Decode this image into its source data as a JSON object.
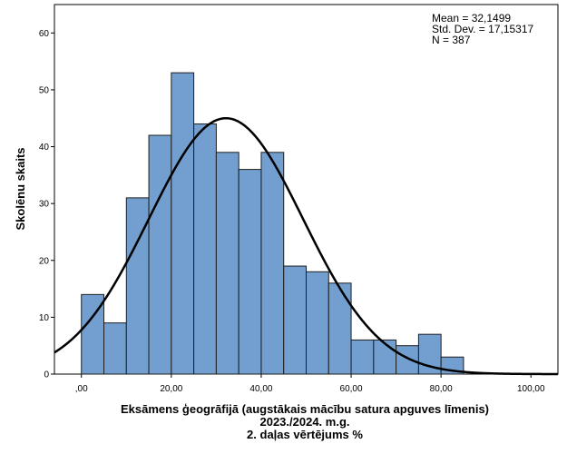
{
  "chart_data": {
    "type": "bar",
    "subtype": "histogram",
    "bin_width": 5,
    "bins": [
      {
        "start": 0,
        "end": 5,
        "count": 14
      },
      {
        "start": 5,
        "end": 10,
        "count": 9
      },
      {
        "start": 10,
        "end": 15,
        "count": 31
      },
      {
        "start": 15,
        "end": 20,
        "count": 42
      },
      {
        "start": 20,
        "end": 25,
        "count": 53
      },
      {
        "start": 25,
        "end": 30,
        "count": 44
      },
      {
        "start": 30,
        "end": 35,
        "count": 39
      },
      {
        "start": 35,
        "end": 40,
        "count": 36
      },
      {
        "start": 40,
        "end": 45,
        "count": 39
      },
      {
        "start": 45,
        "end": 50,
        "count": 19
      },
      {
        "start": 50,
        "end": 55,
        "count": 18
      },
      {
        "start": 55,
        "end": 60,
        "count": 16
      },
      {
        "start": 60,
        "end": 65,
        "count": 6
      },
      {
        "start": 65,
        "end": 70,
        "count": 6
      },
      {
        "start": 70,
        "end": 75,
        "count": 5
      },
      {
        "start": 75,
        "end": 80,
        "count": 7
      },
      {
        "start": 80,
        "end": 85,
        "count": 3
      }
    ],
    "normal_curve": {
      "mean": 32.1499,
      "sd": 17.15317,
      "n": 387
    },
    "xlim": [
      -6,
      106
    ],
    "ylim": [
      0,
      65
    ],
    "x_ticks": [
      0,
      20,
      40,
      60,
      80,
      100
    ],
    "x_tick_labels": [
      ",00",
      "20,00",
      "40,00",
      "60,00",
      "80,00",
      "100,00"
    ],
    "y_ticks": [
      0,
      10,
      20,
      30,
      40,
      50,
      60
    ],
    "y_tick_labels": [
      "0",
      "10",
      "20",
      "30",
      "40",
      "50",
      "60"
    ],
    "xlabel_lines": [
      "Eksāmens ģeogrāfijā (augstākais mācību satura apguves līmenis)",
      "2023./2024. m.g.",
      "2. daļas vērtējums %"
    ],
    "ylabel": "Skolēnu skaits",
    "stats_lines": [
      "Mean = 32,1499",
      "Std. Dev. = 17,15317",
      "N = 387"
    ],
    "grid": false,
    "bar_color": "#729fcf",
    "bar_edge_color": "#1f1f1f",
    "curve_color": "#000000"
  }
}
